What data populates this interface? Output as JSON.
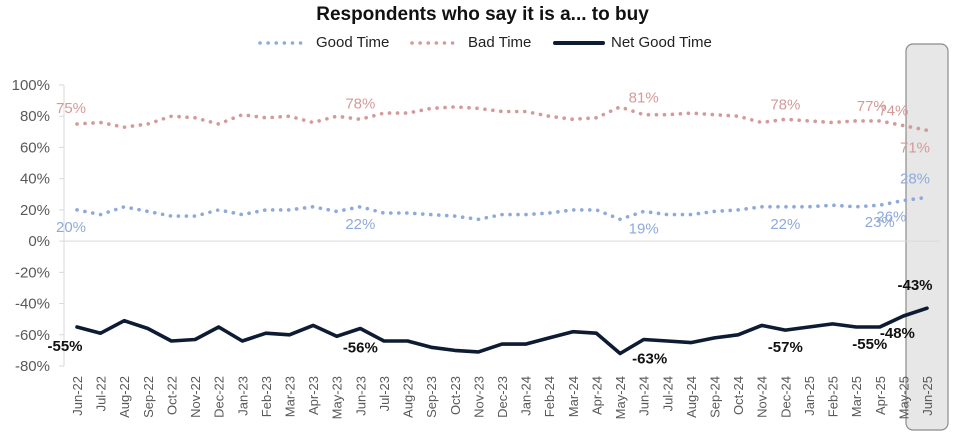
{
  "chart_data": {
    "type": "line",
    "title": "Respondents who say it is a... to buy",
    "xlabel": "",
    "ylabel": "",
    "ylim": [
      -80,
      100
    ],
    "yticks": [
      100,
      80,
      60,
      40,
      20,
      0,
      -20,
      -40,
      -60,
      -80
    ],
    "ytick_labels": [
      "100%",
      "80%",
      "60%",
      "40%",
      "20%",
      "0%",
      "-20%",
      "-40%",
      "-60%",
      "-80%"
    ],
    "grid": false,
    "legend_position": "top-center",
    "highlight_category": "Jun-25",
    "categories": [
      "Jun-22",
      "Jul-22",
      "Aug-22",
      "Sep-22",
      "Oct-22",
      "Nov-22",
      "Dec-22",
      "Jan-23",
      "Feb-23",
      "Mar-23",
      "Apr-23",
      "May-23",
      "Jun-23",
      "Jul-23",
      "Aug-23",
      "Sep-23",
      "Oct-23",
      "Nov-23",
      "Dec-23",
      "Jan-24",
      "Feb-24",
      "Mar-24",
      "Apr-24",
      "May-24",
      "Jun-24",
      "Jul-24",
      "Aug-24",
      "Sep-24",
      "Oct-24",
      "Nov-24",
      "Dec-24",
      "Jan-25",
      "Feb-25",
      "Mar-25",
      "Apr-25",
      "May-25",
      "Jun-25"
    ],
    "series": [
      {
        "name": "Good Time",
        "style": "dotted",
        "color": "#8eaadb",
        "values": [
          20,
          17,
          22,
          19,
          16,
          16,
          20,
          17,
          20,
          20,
          22,
          19,
          22,
          18,
          18,
          17,
          16,
          14,
          17,
          17,
          18,
          20,
          20,
          14,
          19,
          17,
          17,
          19,
          20,
          22,
          22,
          22,
          23,
          22,
          23,
          26,
          28
        ],
        "data_labels": [
          {
            "index": 0,
            "text": "20%"
          },
          {
            "index": 12,
            "text": "22%"
          },
          {
            "index": 24,
            "text": "19%"
          },
          {
            "index": 30,
            "text": "22%"
          },
          {
            "index": 34,
            "text": "23%"
          },
          {
            "index": 35,
            "text": "26%"
          },
          {
            "index": 36,
            "text": "28%"
          }
        ]
      },
      {
        "name": "Bad Time",
        "style": "dotted",
        "color": "#d49a9a",
        "values": [
          75,
          76,
          73,
          75,
          80,
          79,
          75,
          81,
          79,
          80,
          76,
          80,
          78,
          82,
          82,
          85,
          86,
          85,
          83,
          83,
          80,
          78,
          79,
          86,
          81,
          81,
          82,
          81,
          80,
          76,
          78,
          77,
          76,
          77,
          77,
          74,
          71
        ],
        "data_labels": [
          {
            "index": 0,
            "text": "75%"
          },
          {
            "index": 12,
            "text": "78%"
          },
          {
            "index": 24,
            "text": "81%"
          },
          {
            "index": 30,
            "text": "78%"
          },
          {
            "index": 34,
            "text": "77%"
          },
          {
            "index": 35,
            "text": "74%"
          },
          {
            "index": 36,
            "text": "71%"
          }
        ]
      },
      {
        "name": "Net Good Time",
        "style": "solid",
        "color": "#0d1b33",
        "values": [
          -55,
          -59,
          -51,
          -56,
          -64,
          -63,
          -55,
          -64,
          -59,
          -60,
          -54,
          -61,
          -56,
          -64,
          -64,
          -68,
          -70,
          -71,
          -66,
          -66,
          -62,
          -58,
          -59,
          -72,
          -63,
          -64,
          -65,
          -62,
          -60,
          -54,
          -57,
          -55,
          -53,
          -55,
          -55,
          -48,
          -43
        ],
        "data_labels": [
          {
            "index": 0,
            "text": "-55%"
          },
          {
            "index": 12,
            "text": "-56%"
          },
          {
            "index": 24,
            "text": "-63%"
          },
          {
            "index": 30,
            "text": "-57%"
          },
          {
            "index": 34,
            "text": "-55%"
          },
          {
            "index": 35,
            "text": "-48%"
          },
          {
            "index": 36,
            "text": "-43%"
          }
        ]
      }
    ]
  }
}
